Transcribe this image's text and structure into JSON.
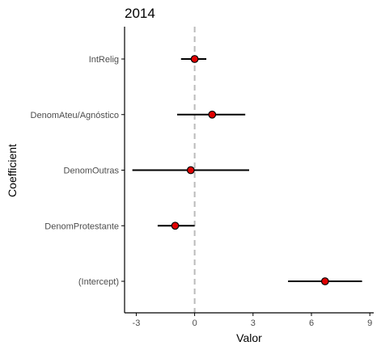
{
  "chart_data": {
    "type": "scatter",
    "subtype": "coefficient-plot",
    "title": "2014",
    "xlabel": "Valor",
    "ylabel": "Coefficient",
    "xlim": [
      -3.6,
      9.2
    ],
    "xticks": [
      -3,
      0,
      3,
      6,
      9
    ],
    "reference_line": 0,
    "grid": false,
    "legend": "none",
    "categories": [
      "IntRelig",
      "DenomAteu/Agnóstico",
      "DenomOutras",
      "DenomProtestante",
      "(Intercept)"
    ],
    "estimates": [
      0.0,
      0.9,
      -0.2,
      -1.0,
      6.7
    ],
    "ci_low": [
      -0.7,
      -0.9,
      -3.2,
      -1.9,
      4.8
    ],
    "ci_high": [
      0.6,
      2.6,
      2.8,
      0.0,
      8.6
    ]
  },
  "colors": {
    "point_fill": "#e00000",
    "point_stroke": "#000000",
    "interval": "#000000",
    "reference_line": "#bbbbbb",
    "axis": "#000000",
    "tick_label": "#4d4d4d"
  }
}
